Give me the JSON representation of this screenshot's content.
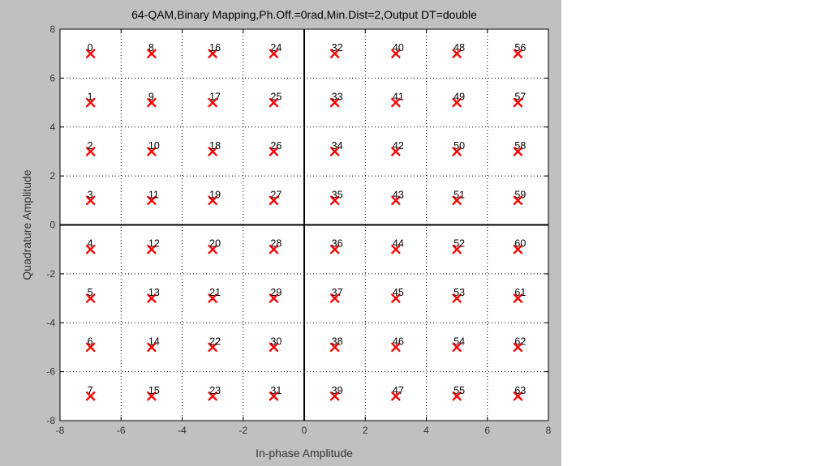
{
  "chart_data": {
    "type": "scatter",
    "title": "64-QAM,Binary Mapping,Ph.Off.=0rad,Min.Dist=2,Output DT=double",
    "xlabel": "In-phase Amplitude",
    "ylabel": "Quadrature Amplitude",
    "xlim": [
      -8,
      8
    ],
    "ylim": [
      -8,
      8
    ],
    "xticks": [
      "-8",
      "-6",
      "-4",
      "-2",
      "0",
      "2",
      "4",
      "6",
      "8"
    ],
    "yticks": [
      "8",
      "6",
      "4",
      "2",
      "0",
      "-2",
      "-4",
      "-6",
      "-8"
    ],
    "grid": true,
    "marker": "x",
    "marker_color": "#ff0000",
    "points": [
      {
        "label": "0",
        "x": -7,
        "y": 7
      },
      {
        "label": "1",
        "x": -7,
        "y": 5
      },
      {
        "label": "2",
        "x": -7,
        "y": 3
      },
      {
        "label": "3",
        "x": -7,
        "y": 1
      },
      {
        "label": "4",
        "x": -7,
        "y": -1
      },
      {
        "label": "5",
        "x": -7,
        "y": -3
      },
      {
        "label": "6",
        "x": -7,
        "y": -5
      },
      {
        "label": "7",
        "x": -7,
        "y": -7
      },
      {
        "label": "8",
        "x": -5,
        "y": 7
      },
      {
        "label": "9",
        "x": -5,
        "y": 5
      },
      {
        "label": "10",
        "x": -5,
        "y": 3
      },
      {
        "label": "11",
        "x": -5,
        "y": 1
      },
      {
        "label": "12",
        "x": -5,
        "y": -1
      },
      {
        "label": "13",
        "x": -5,
        "y": -3
      },
      {
        "label": "14",
        "x": -5,
        "y": -5
      },
      {
        "label": "15",
        "x": -5,
        "y": -7
      },
      {
        "label": "16",
        "x": -3,
        "y": 7
      },
      {
        "label": "17",
        "x": -3,
        "y": 5
      },
      {
        "label": "18",
        "x": -3,
        "y": 3
      },
      {
        "label": "19",
        "x": -3,
        "y": 1
      },
      {
        "label": "20",
        "x": -3,
        "y": -1
      },
      {
        "label": "21",
        "x": -3,
        "y": -3
      },
      {
        "label": "22",
        "x": -3,
        "y": -5
      },
      {
        "label": "23",
        "x": -3,
        "y": -7
      },
      {
        "label": "24",
        "x": -1,
        "y": 7
      },
      {
        "label": "25",
        "x": -1,
        "y": 5
      },
      {
        "label": "26",
        "x": -1,
        "y": 3
      },
      {
        "label": "27",
        "x": -1,
        "y": 1
      },
      {
        "label": "28",
        "x": -1,
        "y": -1
      },
      {
        "label": "29",
        "x": -1,
        "y": -3
      },
      {
        "label": "30",
        "x": -1,
        "y": -5
      },
      {
        "label": "31",
        "x": -1,
        "y": -7
      },
      {
        "label": "32",
        "x": 1,
        "y": 7
      },
      {
        "label": "33",
        "x": 1,
        "y": 5
      },
      {
        "label": "34",
        "x": 1,
        "y": 3
      },
      {
        "label": "35",
        "x": 1,
        "y": 1
      },
      {
        "label": "36",
        "x": 1,
        "y": -1
      },
      {
        "label": "37",
        "x": 1,
        "y": -3
      },
      {
        "label": "38",
        "x": 1,
        "y": -5
      },
      {
        "label": "39",
        "x": 1,
        "y": -7
      },
      {
        "label": "40",
        "x": 3,
        "y": 7
      },
      {
        "label": "41",
        "x": 3,
        "y": 5
      },
      {
        "label": "42",
        "x": 3,
        "y": 3
      },
      {
        "label": "43",
        "x": 3,
        "y": 1
      },
      {
        "label": "44",
        "x": 3,
        "y": -1
      },
      {
        "label": "45",
        "x": 3,
        "y": -3
      },
      {
        "label": "46",
        "x": 3,
        "y": -5
      },
      {
        "label": "47",
        "x": 3,
        "y": -7
      },
      {
        "label": "48",
        "x": 5,
        "y": 7
      },
      {
        "label": "49",
        "x": 5,
        "y": 5
      },
      {
        "label": "50",
        "x": 5,
        "y": 3
      },
      {
        "label": "51",
        "x": 5,
        "y": 1
      },
      {
        "label": "52",
        "x": 5,
        "y": -1
      },
      {
        "label": "53",
        "x": 5,
        "y": -3
      },
      {
        "label": "54",
        "x": 5,
        "y": -5
      },
      {
        "label": "55",
        "x": 5,
        "y": -7
      },
      {
        "label": "56",
        "x": 7,
        "y": 7
      },
      {
        "label": "57",
        "x": 7,
        "y": 5
      },
      {
        "label": "58",
        "x": 7,
        "y": 3
      },
      {
        "label": "59",
        "x": 7,
        "y": 1
      },
      {
        "label": "60",
        "x": 7,
        "y": -1
      },
      {
        "label": "61",
        "x": 7,
        "y": -3
      },
      {
        "label": "62",
        "x": 7,
        "y": -5
      },
      {
        "label": "63",
        "x": 7,
        "y": -7
      }
    ]
  }
}
